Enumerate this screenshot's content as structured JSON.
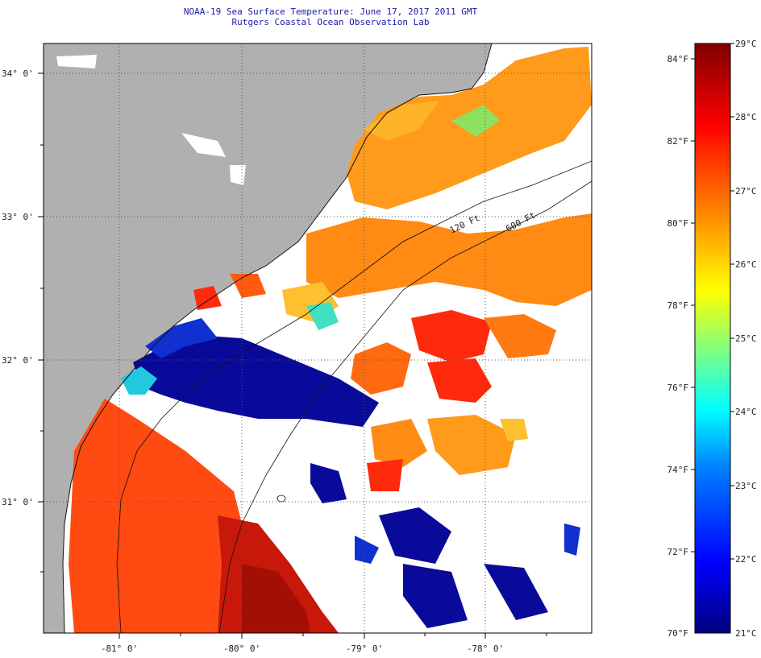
{
  "title": {
    "line1": "NOAA-19 Sea Surface Temperature:  June 17, 2017 2011 GMT",
    "line2": "Rutgers Coastal Ocean Observation Lab"
  },
  "map": {
    "lat_labels": [
      "34° 0'",
      "33° 0'",
      "32° 0'",
      "31° 0'"
    ],
    "lon_labels": [
      "-81° 0'",
      "-80° 0'",
      "-79° 0'",
      "-78° 0'"
    ],
    "isobaths": [
      "120 Ft",
      "600 Ft"
    ],
    "colors": {
      "land": "#b0b0b0",
      "no_data": "#ffffff",
      "gridline": "#555555"
    }
  },
  "colorbar": {
    "fahrenheit": [
      "84°F",
      "82°F",
      "80°F",
      "78°F",
      "76°F",
      "74°F",
      "72°F",
      "70°F"
    ],
    "celsius": [
      "29°C",
      "28°C",
      "27°C",
      "26°C",
      "25°C",
      "24°C",
      "23°C",
      "22°C",
      "21°C"
    ],
    "stops": [
      "#00007f",
      "#0000ff",
      "#0080ff",
      "#00ffff",
      "#80ff80",
      "#ffff00",
      "#ff8000",
      "#ff0000",
      "#7f0000"
    ]
  }
}
